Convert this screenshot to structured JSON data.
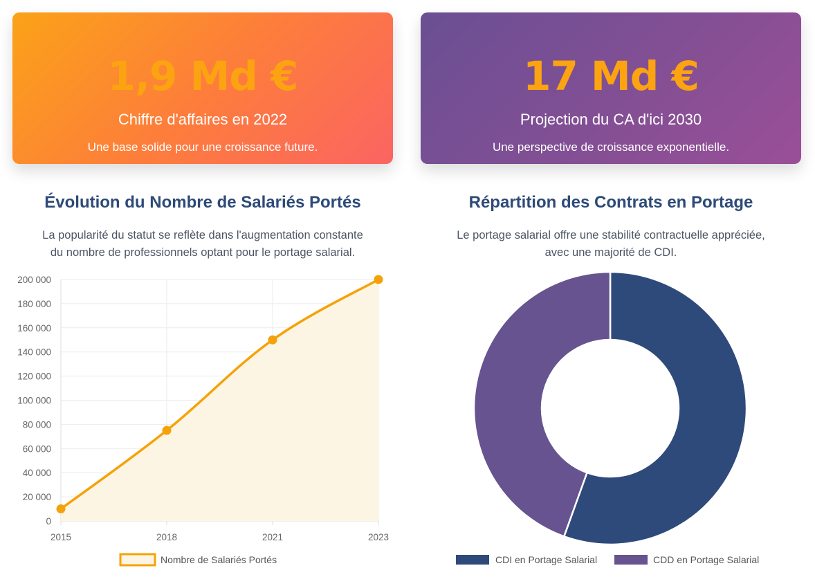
{
  "cards": [
    {
      "value": "1,9 Md €",
      "label": "Chiffre d'affaires en 2022",
      "description": "Une base solide pour une croissance future."
    },
    {
      "value": "17 Md €",
      "label": "Projection du CA d'ici 2030",
      "description": "Une perspective de croissance exponentielle."
    }
  ],
  "left_section": {
    "title": "Évolution du Nombre de Salariés Portés",
    "description_lines": [
      "La popularité du statut se reflète dans l'augmentation constante",
      "du nombre de professionnels optant pour le portage salarial."
    ]
  },
  "right_section": {
    "title": "Répartition des Contrats en Portage",
    "description_lines": [
      "Le portage salarial offre une stabilité contractuelle appréciée,",
      "avec une majorité de CDI."
    ]
  },
  "colors": {
    "line": "#f5a20a",
    "area_fill": "#fdf5e4",
    "cdi": "#2e4a7a",
    "cdd": "#66538f",
    "grid": "#ebebeb",
    "tick_text": "#666666"
  },
  "chart_data": [
    {
      "type": "line",
      "categories": [
        "2015",
        "2018",
        "2021",
        "2023"
      ],
      "series": [
        {
          "name": "Nombre de Salariés Portés",
          "values": [
            10000,
            75000,
            150000,
            200000
          ]
        }
      ],
      "ylim": [
        0,
        200000
      ],
      "y_ticks": [
        {
          "value": 0,
          "label": "0"
        },
        {
          "value": 20000,
          "label": "20 000"
        },
        {
          "value": 40000,
          "label": "40 000"
        },
        {
          "value": 60000,
          "label": "60 000"
        },
        {
          "value": 80000,
          "label": "80 000"
        },
        {
          "value": 100000,
          "label": "100 000"
        },
        {
          "value": 120000,
          "label": "120 000"
        },
        {
          "value": 140000,
          "label": "140 000"
        },
        {
          "value": 160000,
          "label": "160 000"
        },
        {
          "value": 180000,
          "label": "180 000"
        },
        {
          "value": 200000,
          "label": "200 000"
        }
      ],
      "area_filled": true,
      "grid": true,
      "legend": "bottom"
    },
    {
      "type": "pie",
      "donut": true,
      "labels": [
        "CDI en Portage Salarial",
        "CDD en Portage Salarial"
      ],
      "values": [
        55.5,
        44.5
      ],
      "legend": "bottom"
    }
  ]
}
